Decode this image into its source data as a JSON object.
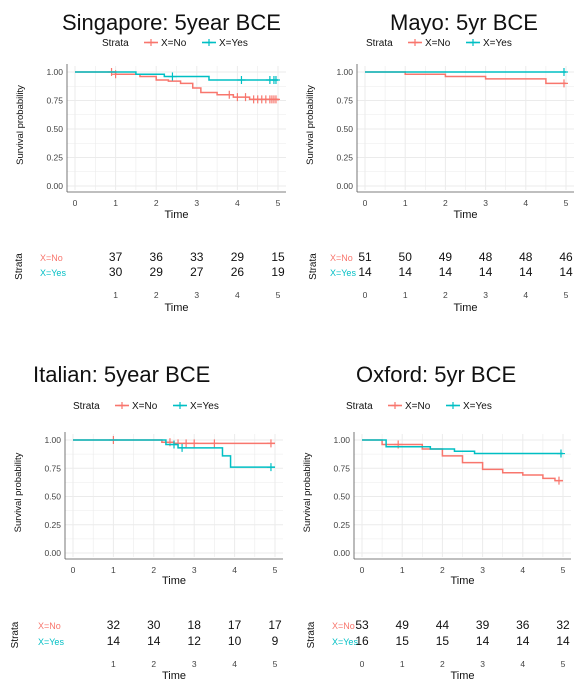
{
  "colors": {
    "no": "#F8766D",
    "yes": "#00BFC4",
    "grid": "#ebebeb",
    "axis": "#555555",
    "text": "#111111"
  },
  "panels": [
    {
      "title": "Singapore: 5year BCE",
      "legend": {
        "title": "Strata",
        "no": "X=No",
        "yes": "X=Yes"
      },
      "y_axis_label": "Survival probability",
      "x_axis_label": "Time",
      "x_ticks": [
        "0",
        "1",
        "2",
        "3",
        "4",
        "5"
      ],
      "y_ticks": [
        "0.00",
        "0.25",
        "0.50",
        "0.75",
        "1.00"
      ],
      "risk_table": {
        "strata_label": "Strata",
        "row_labels": [
          "X=No",
          "X=Yes"
        ],
        "times": [
          "1",
          "2",
          "3",
          "4",
          "5"
        ],
        "no": [
          "37",
          "36",
          "33",
          "29",
          "15"
        ],
        "yes": [
          "30",
          "29",
          "27",
          "26",
          "19"
        ],
        "x_axis_label": "Time"
      }
    },
    {
      "title": "Mayo: 5yr BCE",
      "legend": {
        "title": "Strata",
        "no": "X=No",
        "yes": "X=Yes"
      },
      "y_axis_label": "Survival probability",
      "x_axis_label": "Time",
      "x_ticks": [
        "0",
        "1",
        "2",
        "3",
        "4",
        "5"
      ],
      "y_ticks": [
        "0.00",
        "0.25",
        "0.50",
        "0.75",
        "1.00"
      ],
      "risk_table": {
        "strata_label": "Strata",
        "row_labels": [
          "X=No",
          "X=Yes"
        ],
        "times": [
          "0",
          "1",
          "2",
          "3",
          "4",
          "5"
        ],
        "no": [
          "51",
          "50",
          "49",
          "48",
          "48",
          "46"
        ],
        "yes": [
          "14",
          "14",
          "14",
          "14",
          "14",
          "14"
        ],
        "x_axis_label": "Time"
      }
    },
    {
      "title": "Italian: 5year BCE",
      "legend": {
        "title": "Strata",
        "no": "X=No",
        "yes": "X=Yes"
      },
      "y_axis_label": "Survival probability",
      "x_axis_label": "Time",
      "x_ticks": [
        "0",
        "1",
        "2",
        "3",
        "4",
        "5"
      ],
      "y_ticks": [
        "0.00",
        "0.25",
        "0.50",
        "0.75",
        "1.00"
      ],
      "risk_table": {
        "strata_label": "Strata",
        "row_labels": [
          "X=No",
          "X=Yes"
        ],
        "times": [
          "1",
          "2",
          "3",
          "4",
          "5"
        ],
        "no": [
          "32",
          "30",
          "18",
          "17",
          "17"
        ],
        "yes": [
          "14",
          "14",
          "12",
          "10",
          "9"
        ],
        "x_axis_label": "Time"
      }
    },
    {
      "title": "Oxford: 5yr BCE",
      "legend": {
        "title": "Strata",
        "no": "X=No",
        "yes": "X=Yes"
      },
      "y_axis_label": "Survival probability",
      "x_axis_label": "Time",
      "x_ticks": [
        "0",
        "1",
        "2",
        "3",
        "4",
        "5"
      ],
      "y_ticks": [
        "0.00",
        "0.25",
        "0.50",
        "0.75",
        "1.00"
      ],
      "risk_table": {
        "strata_label": "Strata",
        "row_labels": [
          "X=No",
          "X=Yes"
        ],
        "times": [
          "0",
          "1",
          "2",
          "3",
          "4",
          "5"
        ],
        "no": [
          "53",
          "49",
          "44",
          "39",
          "36",
          "32"
        ],
        "yes": [
          "16",
          "15",
          "15",
          "14",
          "14",
          "14"
        ],
        "x_axis_label": "Time"
      }
    }
  ],
  "chart_data": [
    {
      "type": "line",
      "title": "Singapore: 5year BCE",
      "xlabel": "Time",
      "ylabel": "Survival probability",
      "xlim": [
        0,
        5
      ],
      "ylim": [
        0,
        1
      ],
      "legend": "top",
      "series": [
        {
          "name": "X=No",
          "steps": [
            [
              0,
              1.0
            ],
            [
              1.0,
              0.98
            ],
            [
              1.6,
              0.96
            ],
            [
              2.0,
              0.93
            ],
            [
              2.3,
              0.92
            ],
            [
              2.6,
              0.9
            ],
            [
              2.9,
              0.86
            ],
            [
              3.1,
              0.82
            ],
            [
              3.5,
              0.8
            ],
            [
              3.9,
              0.78
            ],
            [
              4.3,
              0.76
            ],
            [
              5.0,
              0.75
            ]
          ],
          "censor": [
            0.9,
            1.0,
            3.8,
            4.0,
            4.2,
            4.4,
            4.5,
            4.6,
            4.7,
            4.8,
            4.85,
            4.9,
            4.95
          ]
        },
        {
          "name": "X=Yes",
          "steps": [
            [
              0,
              1.0
            ],
            [
              1.5,
              0.98
            ],
            [
              2.2,
              0.96
            ],
            [
              3.3,
              0.93
            ],
            [
              5.0,
              0.93
            ]
          ],
          "censor": [
            2.4,
            4.1,
            4.8,
            4.9,
            4.95
          ]
        }
      ]
    },
    {
      "type": "line",
      "title": "Mayo: 5yr BCE",
      "xlabel": "Time",
      "ylabel": "Survival probability",
      "xlim": [
        0,
        5
      ],
      "ylim": [
        0,
        1
      ],
      "legend": "top",
      "series": [
        {
          "name": "X=No",
          "steps": [
            [
              0,
              1.0
            ],
            [
              1.0,
              0.98
            ],
            [
              2.0,
              0.96
            ],
            [
              3.0,
              0.94
            ],
            [
              4.0,
              0.94
            ],
            [
              4.5,
              0.9
            ],
            [
              5.0,
              0.9
            ]
          ],
          "censor": [
            4.95
          ]
        },
        {
          "name": "X=Yes",
          "steps": [
            [
              0,
              1.0
            ],
            [
              5.0,
              1.0
            ]
          ],
          "censor": [
            4.95
          ]
        }
      ]
    },
    {
      "type": "line",
      "title": "Italian: 5year BCE",
      "xlabel": "Time",
      "ylabel": "Survival probability",
      "xlim": [
        0,
        5
      ],
      "ylim": [
        0,
        1
      ],
      "legend": "top",
      "series": [
        {
          "name": "X=No",
          "steps": [
            [
              0,
              1.0
            ],
            [
              2.2,
              0.98
            ],
            [
              2.5,
              0.97
            ],
            [
              5.0,
              0.97
            ]
          ],
          "censor": [
            1.0,
            2.4,
            2.6,
            2.8,
            3.0,
            3.5,
            4.9
          ]
        },
        {
          "name": "X=Yes",
          "steps": [
            [
              0,
              1.0
            ],
            [
              2.3,
              0.96
            ],
            [
              2.6,
              0.93
            ],
            [
              3.7,
              0.86
            ],
            [
              3.9,
              0.76
            ],
            [
              5.0,
              0.76
            ]
          ],
          "censor": [
            2.5,
            2.7,
            4.9
          ]
        }
      ]
    },
    {
      "type": "line",
      "title": "Oxford: 5yr BCE",
      "xlabel": "Time",
      "ylabel": "Survival probability",
      "xlim": [
        0,
        5
      ],
      "ylim": [
        0,
        1
      ],
      "legend": "top",
      "series": [
        {
          "name": "X=No",
          "steps": [
            [
              0,
              1.0
            ],
            [
              0.5,
              0.96
            ],
            [
              1.5,
              0.92
            ],
            [
              2.0,
              0.86
            ],
            [
              2.5,
              0.8
            ],
            [
              3.0,
              0.74
            ],
            [
              3.5,
              0.71
            ],
            [
              4.0,
              0.69
            ],
            [
              4.5,
              0.66
            ],
            [
              4.8,
              0.64
            ],
            [
              5.0,
              0.64
            ]
          ],
          "censor": [
            0.9,
            4.9
          ]
        },
        {
          "name": "X=Yes",
          "steps": [
            [
              0,
              1.0
            ],
            [
              0.6,
              0.94
            ],
            [
              1.7,
              0.92
            ],
            [
              2.3,
              0.9
            ],
            [
              2.8,
              0.88
            ],
            [
              5.0,
              0.88
            ]
          ],
          "censor": [
            4.95
          ]
        }
      ]
    }
  ]
}
